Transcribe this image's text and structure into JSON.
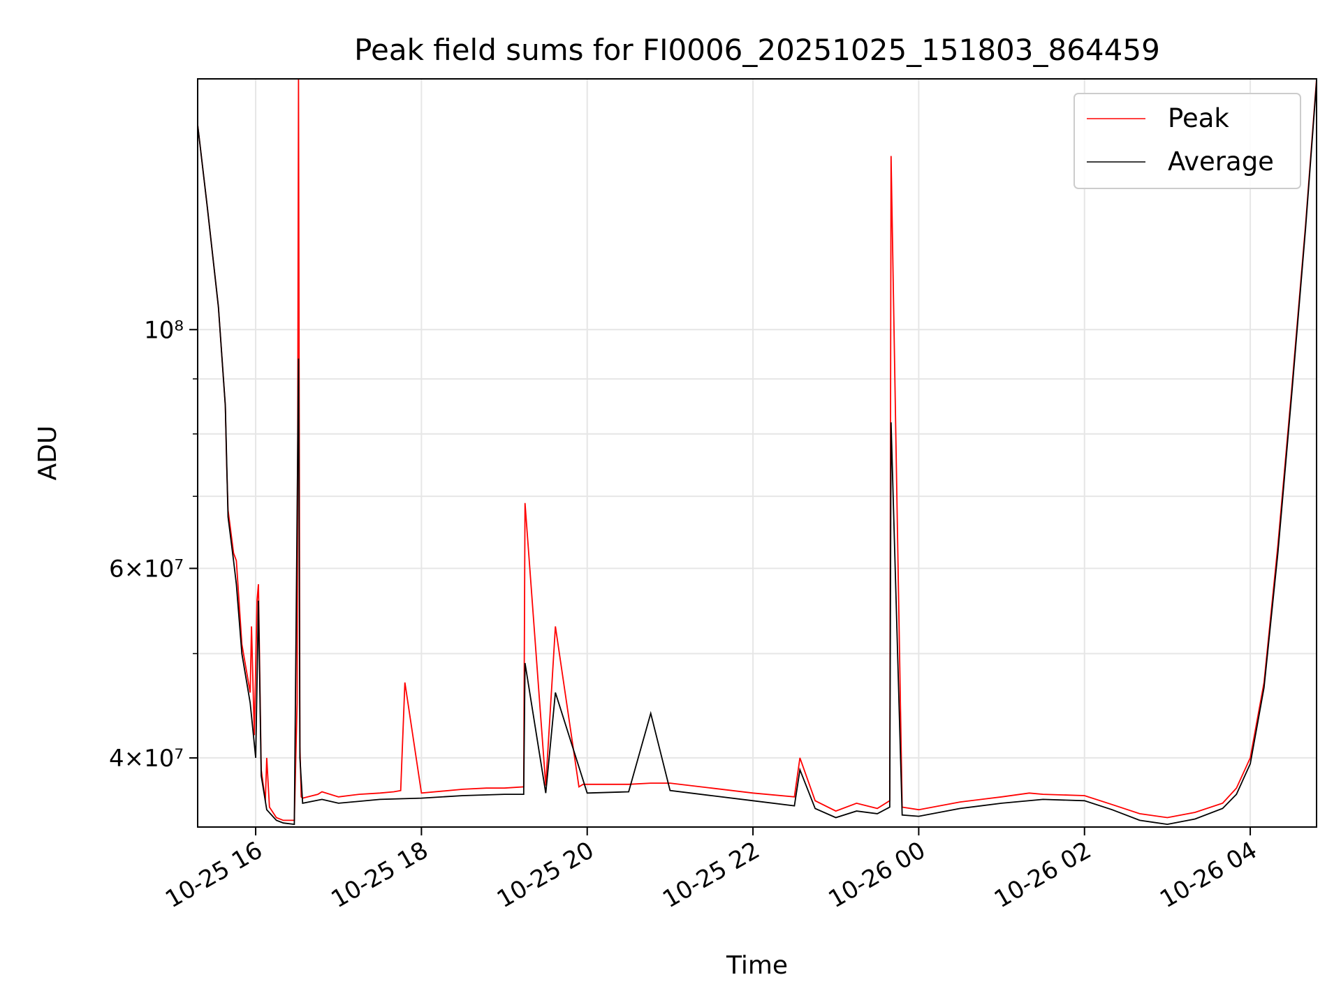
{
  "chart_data": {
    "type": "line",
    "title": "Peak field sums for FI0006_20251025_151803_864459",
    "xlabel": "Time",
    "ylabel": "ADU",
    "x_scale": "time",
    "y_scale": "log",
    "xlim": [
      "2025-10-25 15:18",
      "2025-10-26 04:48"
    ],
    "ylim": [
      34500000,
      171000000
    ],
    "grid": true,
    "legend_position": "upper right",
    "x_ticks": [
      {
        "value": "2025-10-25 16:00",
        "label": "10-25 16"
      },
      {
        "value": "2025-10-25 18:00",
        "label": "10-25 18"
      },
      {
        "value": "2025-10-25 20:00",
        "label": "10-25 20"
      },
      {
        "value": "2025-10-25 22:00",
        "label": "10-25 22"
      },
      {
        "value": "2025-10-26 00:00",
        "label": "10-26 00"
      },
      {
        "value": "2025-10-26 02:00",
        "label": "10-26 02"
      },
      {
        "value": "2025-10-26 04:00",
        "label": "10-26 04"
      }
    ],
    "y_ticks": [
      {
        "value": 40000000,
        "label": "4×10⁷"
      },
      {
        "value": 60000000,
        "label": "6×10⁷"
      },
      {
        "value": 100000000,
        "label": "10⁸"
      }
    ],
    "series": [
      {
        "name": "Peak",
        "color": "#ff0000",
        "x": [
          "2025-10-25 15:18",
          "2025-10-25 15:25",
          "2025-10-25 15:33",
          "2025-10-25 15:38",
          "2025-10-25 15:39",
          "2025-10-25 15:40",
          "2025-10-25 15:44",
          "2025-10-25 15:46",
          "2025-10-25 15:50",
          "2025-10-25 15:56",
          "2025-10-25 15:57",
          "2025-10-25 15:59",
          "2025-10-25 16:01",
          "2025-10-25 16:02",
          "2025-10-25 16:04",
          "2025-10-25 16:07",
          "2025-10-25 16:08",
          "2025-10-25 16:10",
          "2025-10-25 16:15",
          "2025-10-25 16:20",
          "2025-10-25 16:28",
          "2025-10-25 16:30",
          "2025-10-25 16:31",
          "2025-10-25 16:32",
          "2025-10-25 16:33",
          "2025-10-25 16:34",
          "2025-10-25 16:45",
          "2025-10-25 16:48",
          "2025-10-25 17:00",
          "2025-10-25 17:15",
          "2025-10-25 17:30",
          "2025-10-25 17:40",
          "2025-10-25 17:45",
          "2025-10-25 17:48",
          "2025-10-25 18:00",
          "2025-10-25 18:30",
          "2025-10-25 18:47",
          "2025-10-25 19:00",
          "2025-10-25 19:14",
          "2025-10-25 19:15",
          "2025-10-25 19:30",
          "2025-10-25 19:37",
          "2025-10-25 19:54",
          "2025-10-25 19:57",
          "2025-10-25 20:30",
          "2025-10-25 20:46",
          "2025-10-25 21:00",
          "2025-10-25 21:30",
          "2025-10-25 22:00",
          "2025-10-25 22:30",
          "2025-10-25 22:34",
          "2025-10-25 22:45",
          "2025-10-25 23:00",
          "2025-10-25 23:15",
          "2025-10-25 23:30",
          "2025-10-25 23:39",
          "2025-10-25 23:40",
          "2025-10-25 23:48",
          "2025-10-26 00:00",
          "2025-10-26 00:30",
          "2025-10-26 01:00",
          "2025-10-26 01:20",
          "2025-10-26 01:30",
          "2025-10-26 02:00",
          "2025-10-26 02:20",
          "2025-10-26 02:40",
          "2025-10-26 03:00",
          "2025-10-26 03:20",
          "2025-10-26 03:40",
          "2025-10-26 03:50",
          "2025-10-26 04:00",
          "2025-10-26 04:10",
          "2025-10-26 04:20",
          "2025-10-26 04:30",
          "2025-10-26 04:40",
          "2025-10-26 04:48"
        ],
        "values": [
          155000000,
          130000000,
          105000000,
          85000000,
          75000000,
          68000000,
          62000000,
          61000000,
          51000000,
          46000000,
          53000000,
          42000000,
          56000000,
          58000000,
          39000000,
          36500000,
          40000000,
          36000000,
          35200000,
          35000000,
          35000000,
          45000000,
          171000000,
          41000000,
          36800000,
          36700000,
          37000000,
          37200000,
          36800000,
          37000000,
          37100000,
          37200000,
          37300000,
          47000000,
          37100000,
          37400000,
          37500000,
          37500000,
          37600000,
          69000000,
          37700000,
          53000000,
          37600000,
          37800000,
          37800000,
          37900000,
          37900000,
          37500000,
          37100000,
          36800000,
          40000000,
          36500000,
          35700000,
          36300000,
          35900000,
          36500000,
          145000000,
          36000000,
          35800000,
          36400000,
          36800000,
          37100000,
          37000000,
          36900000,
          36200000,
          35500000,
          35200000,
          35600000,
          36300000,
          37500000,
          40000000,
          47000000,
          63000000,
          88000000,
          125000000,
          171000000
        ]
      },
      {
        "name": "Average",
        "color": "#000000",
        "x": [
          "2025-10-25 15:18",
          "2025-10-25 15:25",
          "2025-10-25 15:33",
          "2025-10-25 15:38",
          "2025-10-25 15:40",
          "2025-10-25 15:44",
          "2025-10-25 15:46",
          "2025-10-25 15:50",
          "2025-10-25 15:56",
          "2025-10-25 16:00",
          "2025-10-25 16:02",
          "2025-10-25 16:04",
          "2025-10-25 16:08",
          "2025-10-25 16:15",
          "2025-10-25 16:20",
          "2025-10-25 16:28",
          "2025-10-25 16:31",
          "2025-10-25 16:32",
          "2025-10-25 16:34",
          "2025-10-25 16:48",
          "2025-10-25 17:00",
          "2025-10-25 17:30",
          "2025-10-25 18:00",
          "2025-10-25 18:30",
          "2025-10-25 19:00",
          "2025-10-25 19:14",
          "2025-10-25 19:15",
          "2025-10-25 19:30",
          "2025-10-25 19:37",
          "2025-10-25 20:00",
          "2025-10-25 20:30",
          "2025-10-25 20:46",
          "2025-10-25 21:00",
          "2025-10-25 21:30",
          "2025-10-25 22:00",
          "2025-10-25 22:30",
          "2025-10-25 22:34",
          "2025-10-25 22:45",
          "2025-10-25 23:00",
          "2025-10-25 23:15",
          "2025-10-25 23:30",
          "2025-10-25 23:39",
          "2025-10-25 23:40",
          "2025-10-25 23:48",
          "2025-10-26 00:00",
          "2025-10-26 00:30",
          "2025-10-26 01:00",
          "2025-10-26 01:30",
          "2025-10-26 02:00",
          "2025-10-26 02:20",
          "2025-10-26 02:40",
          "2025-10-26 03:00",
          "2025-10-26 03:20",
          "2025-10-26 03:40",
          "2025-10-26 03:50",
          "2025-10-26 04:00",
          "2025-10-26 04:10",
          "2025-10-26 04:20",
          "2025-10-26 04:30",
          "2025-10-26 04:40",
          "2025-10-26 04:48"
        ],
        "values": [
          155000000,
          130000000,
          105000000,
          85000000,
          67000000,
          61000000,
          58000000,
          50000000,
          45000000,
          40000000,
          56000000,
          38500000,
          35800000,
          35000000,
          34800000,
          34700000,
          94000000,
          40000000,
          36300000,
          36600000,
          36300000,
          36600000,
          36700000,
          36900000,
          37000000,
          37000000,
          49000000,
          37100000,
          46000000,
          37100000,
          37200000,
          44000000,
          37300000,
          36900000,
          36500000,
          36100000,
          39000000,
          35900000,
          35200000,
          35700000,
          35500000,
          36000000,
          82000000,
          35400000,
          35300000,
          35900000,
          36300000,
          36600000,
          36500000,
          35800000,
          35000000,
          34700000,
          35100000,
          35900000,
          37000000,
          39500000,
          46500000,
          62000000,
          87000000,
          124000000,
          170000000
        ]
      }
    ]
  }
}
